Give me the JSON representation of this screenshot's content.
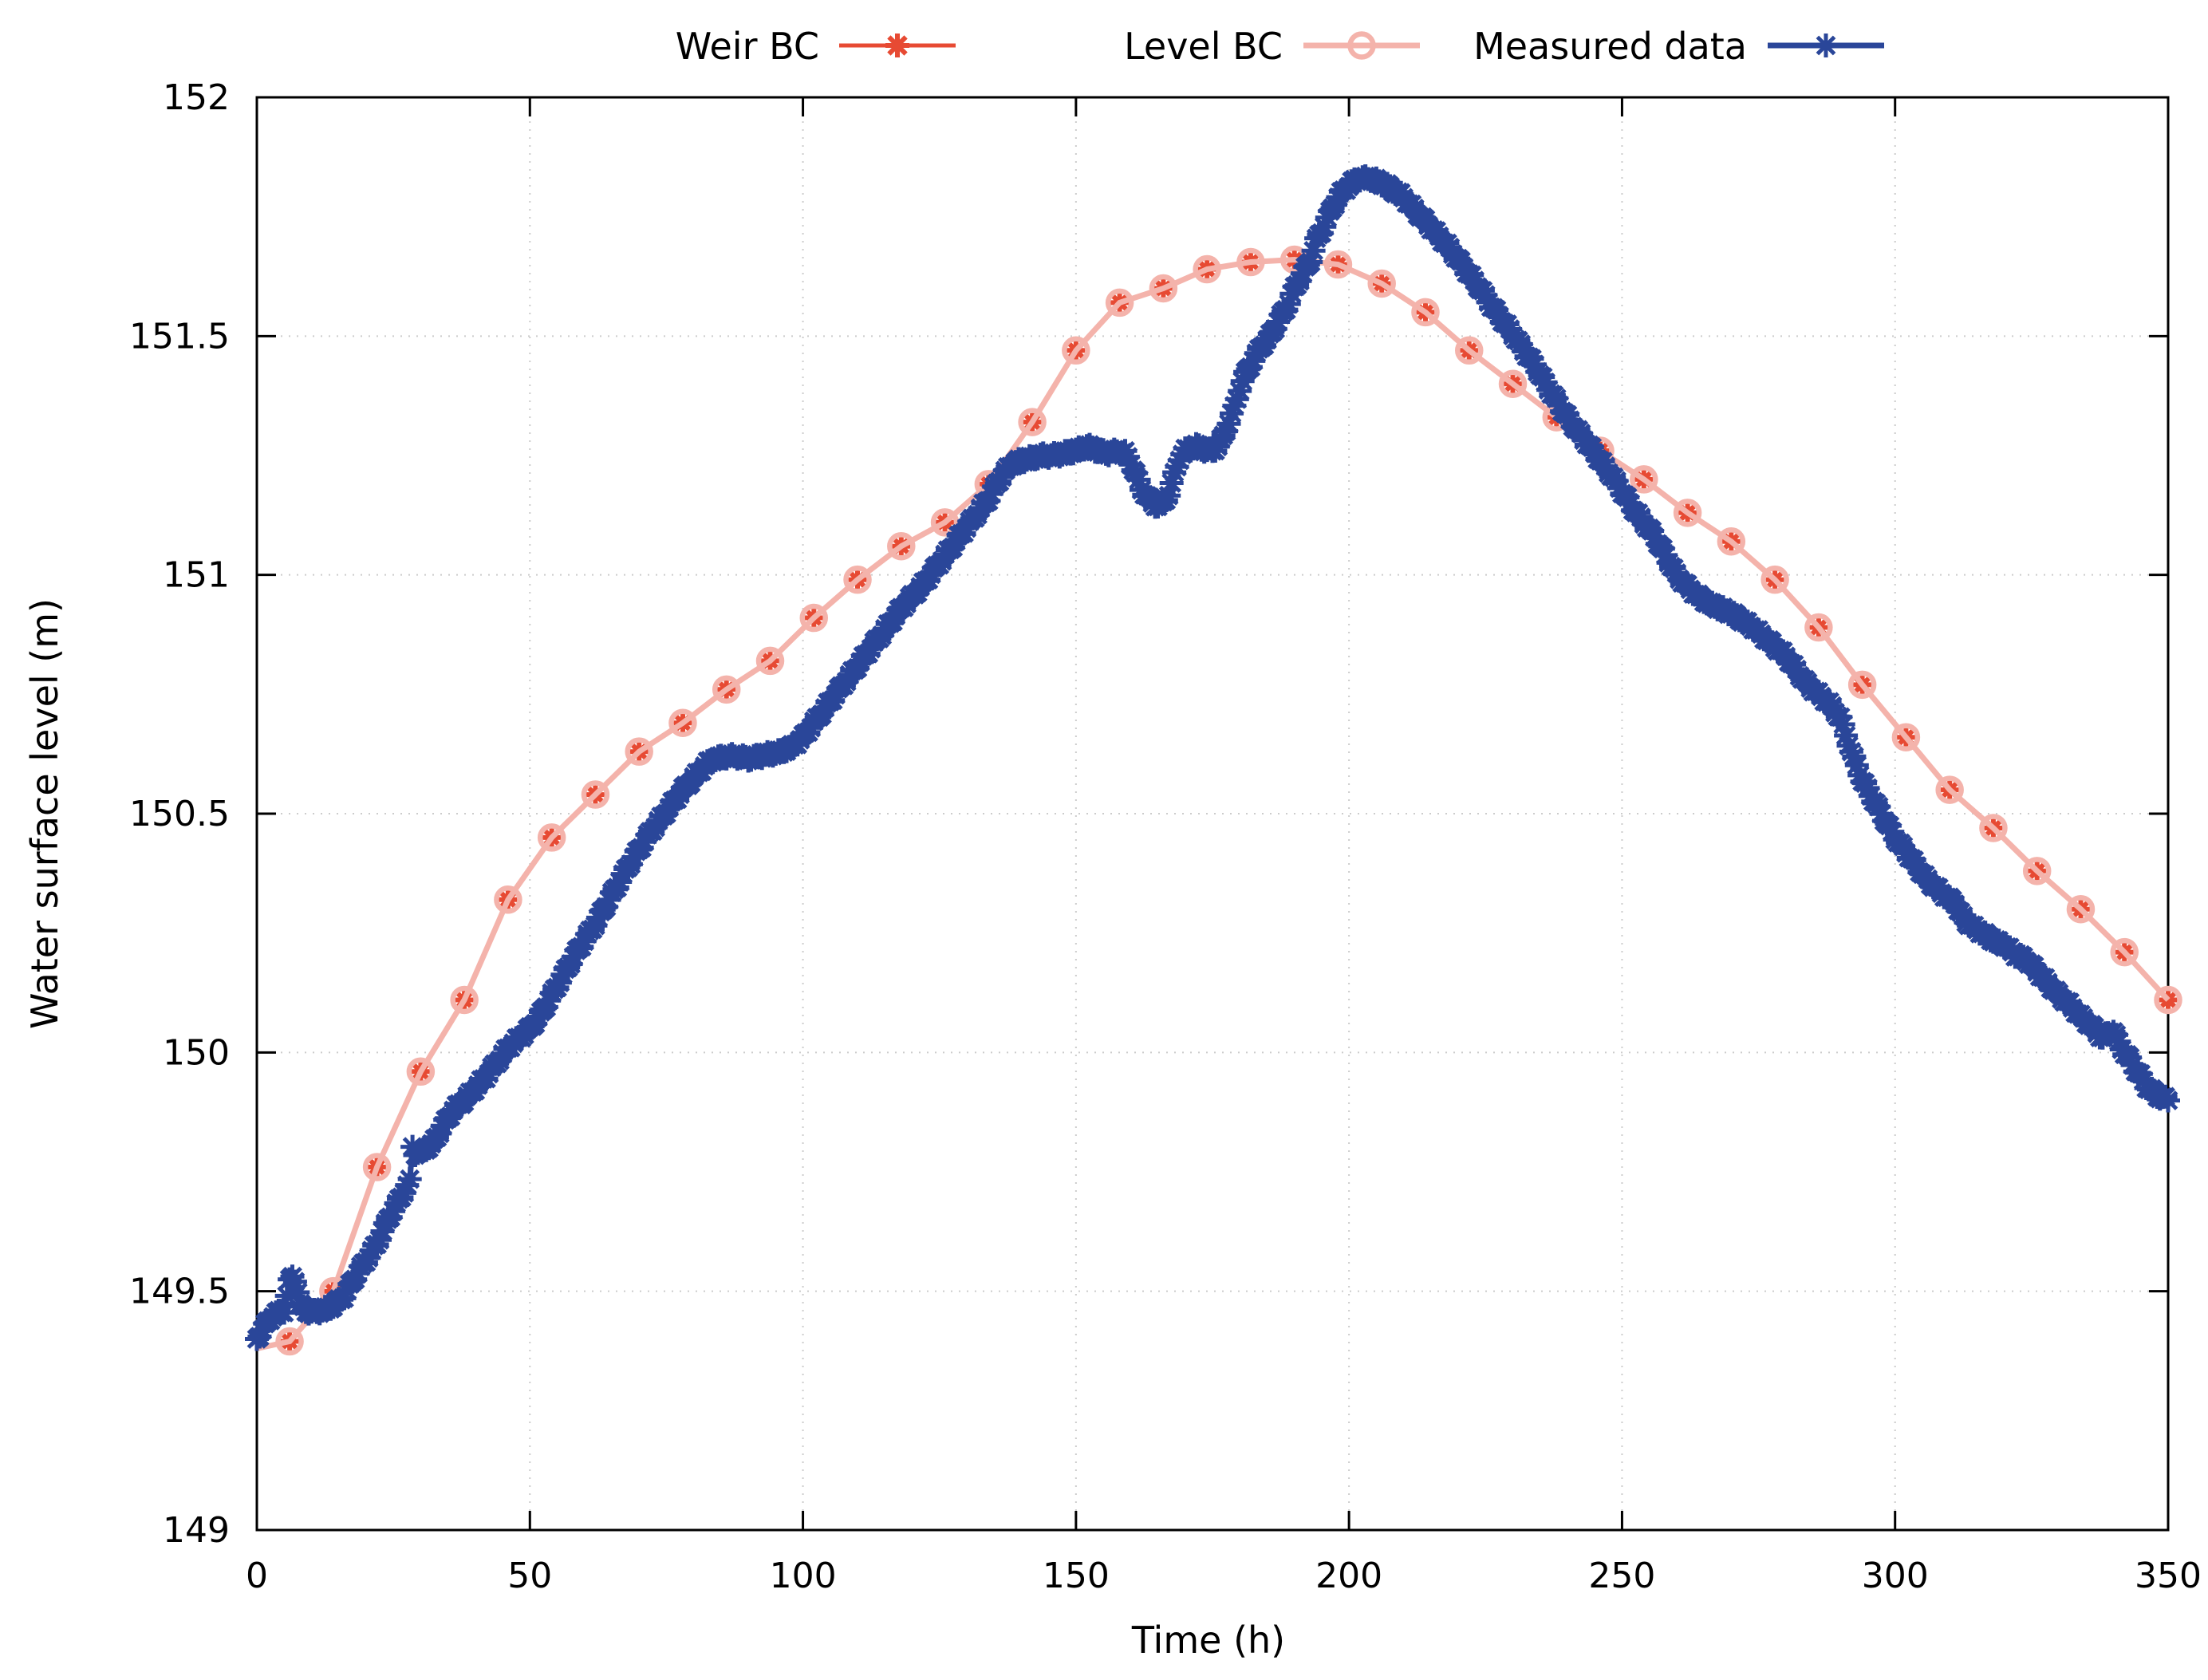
{
  "chart_data": {
    "type": "line",
    "title": "",
    "xlabel": "Time (h)",
    "ylabel": "Water surface level (m)",
    "xlim": [
      0,
      350
    ],
    "ylim": [
      149,
      152
    ],
    "xticks": [
      0,
      50,
      100,
      150,
      200,
      250,
      300,
      350
    ],
    "xtick_labels": [
      "0",
      "50",
      "100",
      "150",
      "200",
      "250",
      "300",
      "350"
    ],
    "yticks": [
      149,
      149.5,
      150,
      150.5,
      151,
      151.5,
      152
    ],
    "ytick_labels": [
      "149",
      "149.5",
      "150",
      "150.5",
      "151",
      "151.5",
      "152"
    ],
    "grid": true,
    "grid_color": "#cccccc",
    "axis_color": "#000000",
    "background": "#ffffff",
    "legend_position": "top-outside-horizontal",
    "series": [
      {
        "name": "Weir BC",
        "color": "#e74a33",
        "marker": "asterisk",
        "marker_from_index": 1,
        "x": [
          0,
          6,
          14,
          22,
          30,
          38,
          46,
          54,
          62,
          70,
          78,
          86,
          94,
          102,
          110,
          118,
          126,
          134,
          142,
          150,
          158,
          166,
          174,
          182,
          190,
          198,
          206,
          214,
          222,
          230,
          238,
          246,
          254,
          262,
          270,
          278,
          286,
          294,
          302,
          310,
          318,
          326,
          334,
          342,
          350
        ],
        "y": [
          149.38,
          149.395,
          149.5,
          149.76,
          149.96,
          150.11,
          150.32,
          150.45,
          150.54,
          150.63,
          150.69,
          150.76,
          150.82,
          150.91,
          150.99,
          151.06,
          151.11,
          151.19,
          151.32,
          151.47,
          151.57,
          151.6,
          151.64,
          151.655,
          151.66,
          151.65,
          151.61,
          151.55,
          151.47,
          151.4,
          151.33,
          151.26,
          151.2,
          151.13,
          151.07,
          150.99,
          150.89,
          150.77,
          150.66,
          150.55,
          150.47,
          150.38,
          150.3,
          150.21,
          150.11
        ]
      },
      {
        "name": "Level BC",
        "color": "#f4b3ab",
        "marker": "open-circle",
        "marker_from_index": 1,
        "x": [
          0,
          6,
          14,
          22,
          30,
          38,
          46,
          54,
          62,
          70,
          78,
          86,
          94,
          102,
          110,
          118,
          126,
          134,
          142,
          150,
          158,
          166,
          174,
          182,
          190,
          198,
          206,
          214,
          222,
          230,
          238,
          246,
          254,
          262,
          270,
          278,
          286,
          294,
          302,
          310,
          318,
          326,
          334,
          342,
          350
        ],
        "y": [
          149.38,
          149.395,
          149.5,
          149.76,
          149.96,
          150.11,
          150.32,
          150.45,
          150.54,
          150.63,
          150.69,
          150.76,
          150.82,
          150.91,
          150.99,
          151.06,
          151.11,
          151.19,
          151.32,
          151.47,
          151.57,
          151.6,
          151.64,
          151.655,
          151.66,
          151.65,
          151.61,
          151.55,
          151.47,
          151.4,
          151.33,
          151.26,
          151.2,
          151.13,
          151.07,
          150.99,
          150.89,
          150.77,
          150.66,
          150.55,
          150.47,
          150.38,
          150.3,
          150.21,
          150.11
        ]
      },
      {
        "name": "Measured data",
        "color": "#2a4699",
        "marker": "asterisk-dense",
        "points": [
          [
            0,
            149.4
          ],
          [
            1,
            149.42
          ],
          [
            2,
            149.435
          ],
          [
            3,
            149.45
          ],
          [
            4,
            149.455
          ],
          [
            5,
            149.46
          ],
          [
            5.5,
            149.49
          ],
          [
            6,
            149.52
          ],
          [
            6.5,
            149.53
          ],
          [
            7,
            149.525
          ],
          [
            7.5,
            149.5
          ],
          [
            8,
            149.47
          ],
          [
            9,
            149.46
          ],
          [
            10,
            149.455
          ],
          [
            12,
            149.46
          ],
          [
            14,
            149.47
          ],
          [
            16,
            149.49
          ],
          [
            18,
            149.53
          ],
          [
            20,
            149.565
          ],
          [
            22,
            149.6
          ],
          [
            24,
            149.65
          ],
          [
            26,
            149.69
          ],
          [
            28,
            149.73
          ],
          [
            28.3,
            149.79
          ],
          [
            28.6,
            149.81
          ],
          [
            29,
            149.79
          ],
          [
            30,
            149.79
          ],
          [
            31,
            149.8
          ],
          [
            32,
            149.805
          ],
          [
            34,
            149.845
          ],
          [
            36,
            149.88
          ],
          [
            38,
            149.9
          ],
          [
            40,
            149.925
          ],
          [
            42,
            149.95
          ],
          [
            44,
            149.98
          ],
          [
            46,
            150.01
          ],
          [
            48,
            150.03
          ],
          [
            50,
            150.05
          ],
          [
            52,
            150.08
          ],
          [
            54,
            150.12
          ],
          [
            56,
            150.16
          ],
          [
            58,
            150.2
          ],
          [
            60,
            150.235
          ],
          [
            62,
            150.27
          ],
          [
            64,
            150.31
          ],
          [
            66,
            150.35
          ],
          [
            68,
            150.39
          ],
          [
            70,
            150.425
          ],
          [
            72,
            150.46
          ],
          [
            74,
            150.49
          ],
          [
            76,
            150.52
          ],
          [
            78,
            150.55
          ],
          [
            80,
            150.575
          ],
          [
            82,
            150.6
          ],
          [
            83,
            150.61
          ],
          [
            84,
            150.615
          ],
          [
            86,
            150.62
          ],
          [
            88,
            150.62
          ],
          [
            90,
            150.615
          ],
          [
            92,
            150.62
          ],
          [
            94,
            150.625
          ],
          [
            96,
            150.63
          ],
          [
            98,
            150.64
          ],
          [
            100,
            150.66
          ],
          [
            102,
            150.69
          ],
          [
            104,
            150.72
          ],
          [
            106,
            150.75
          ],
          [
            108,
            150.78
          ],
          [
            110,
            150.81
          ],
          [
            112,
            150.84
          ],
          [
            114,
            150.87
          ],
          [
            116,
            150.9
          ],
          [
            118,
            150.93
          ],
          [
            120,
            150.955
          ],
          [
            122,
            150.98
          ],
          [
            124,
            151.01
          ],
          [
            126,
            151.04
          ],
          [
            128,
            151.07
          ],
          [
            130,
            151.1
          ],
          [
            132,
            151.13
          ],
          [
            134,
            151.16
          ],
          [
            136,
            151.2
          ],
          [
            138,
            151.23
          ],
          [
            140,
            151.24
          ],
          [
            142,
            151.245
          ],
          [
            144,
            151.25
          ],
          [
            146,
            151.25
          ],
          [
            148,
            151.255
          ],
          [
            150,
            151.26
          ],
          [
            152,
            151.27
          ],
          [
            154,
            151.26
          ],
          [
            156,
            151.255
          ],
          [
            158,
            151.26
          ],
          [
            159,
            151.255
          ],
          [
            160,
            151.235
          ],
          [
            161,
            151.21
          ],
          [
            162,
            151.18
          ],
          [
            163,
            151.165
          ],
          [
            164,
            151.15
          ],
          [
            165,
            151.145
          ],
          [
            166,
            151.15
          ],
          [
            167,
            151.17
          ],
          [
            168,
            151.21
          ],
          [
            169,
            151.245
          ],
          [
            170,
            151.26
          ],
          [
            171,
            151.265
          ],
          [
            172,
            151.27
          ],
          [
            173,
            151.265
          ],
          [
            174,
            151.26
          ],
          [
            175,
            151.26
          ],
          [
            176,
            151.27
          ],
          [
            177,
            151.29
          ],
          [
            178,
            151.32
          ],
          [
            179,
            151.35
          ],
          [
            180,
            151.39
          ],
          [
            181,
            151.42
          ],
          [
            182,
            151.44
          ],
          [
            183,
            151.46
          ],
          [
            184,
            151.48
          ],
          [
            185,
            151.49
          ],
          [
            186,
            151.51
          ],
          [
            187,
            151.53
          ],
          [
            188,
            151.55
          ],
          [
            189,
            151.57
          ],
          [
            190,
            151.6
          ],
          [
            191,
            151.62
          ],
          [
            192,
            151.64
          ],
          [
            193,
            151.66
          ],
          [
            194,
            151.7
          ],
          [
            195,
            151.72
          ],
          [
            196,
            151.745
          ],
          [
            197,
            151.77
          ],
          [
            198,
            151.79
          ],
          [
            199,
            151.805
          ],
          [
            200,
            151.815
          ],
          [
            201,
            151.825
          ],
          [
            202,
            151.83
          ],
          [
            203,
            151.83
          ],
          [
            204,
            151.83
          ],
          [
            205,
            151.825
          ],
          [
            206,
            151.82
          ],
          [
            207,
            151.815
          ],
          [
            208,
            151.805
          ],
          [
            209,
            151.8
          ],
          [
            210,
            151.79
          ],
          [
            212,
            151.765
          ],
          [
            214,
            151.74
          ],
          [
            216,
            151.715
          ],
          [
            218,
            151.69
          ],
          [
            220,
            151.66
          ],
          [
            222,
            151.63
          ],
          [
            224,
            151.6
          ],
          [
            226,
            151.565
          ],
          [
            228,
            151.535
          ],
          [
            230,
            151.505
          ],
          [
            232,
            151.47
          ],
          [
            234,
            151.44
          ],
          [
            236,
            151.4
          ],
          [
            238,
            151.365
          ],
          [
            240,
            151.33
          ],
          [
            242,
            151.3
          ],
          [
            244,
            151.27
          ],
          [
            246,
            151.24
          ],
          [
            248,
            151.21
          ],
          [
            250,
            151.175
          ],
          [
            252,
            151.14
          ],
          [
            254,
            151.11
          ],
          [
            256,
            151.08
          ],
          [
            258,
            151.04
          ],
          [
            260,
            151.0
          ],
          [
            262,
            150.975
          ],
          [
            264,
            150.955
          ],
          [
            266,
            150.94
          ],
          [
            268,
            150.93
          ],
          [
            270,
            150.92
          ],
          [
            272,
            150.905
          ],
          [
            274,
            150.89
          ],
          [
            276,
            150.87
          ],
          [
            278,
            150.85
          ],
          [
            280,
            150.83
          ],
          [
            282,
            150.8
          ],
          [
            284,
            150.77
          ],
          [
            286,
            150.75
          ],
          [
            288,
            150.73
          ],
          [
            290,
            150.7
          ],
          [
            292,
            150.63
          ],
          [
            294,
            150.57
          ],
          [
            296,
            150.53
          ],
          [
            298,
            150.49
          ],
          [
            300,
            150.45
          ],
          [
            302,
            150.42
          ],
          [
            304,
            150.39
          ],
          [
            306,
            150.36
          ],
          [
            308,
            150.34
          ],
          [
            310,
            150.32
          ],
          [
            311,
            150.315
          ],
          [
            311.5,
            150.3
          ],
          [
            312,
            150.29
          ],
          [
            313,
            150.275
          ],
          [
            314,
            150.265
          ],
          [
            316,
            150.25
          ],
          [
            318,
            150.235
          ],
          [
            320,
            150.225
          ],
          [
            322,
            150.205
          ],
          [
            324,
            150.195
          ],
          [
            326,
            150.17
          ],
          [
            328,
            150.145
          ],
          [
            330,
            150.12
          ],
          [
            332,
            150.1
          ],
          [
            334,
            150.075
          ],
          [
            336,
            150.055
          ],
          [
            338,
            150.03
          ],
          [
            339,
            150.04
          ],
          [
            340,
            150.045
          ],
          [
            341,
            150.02
          ],
          [
            342,
            150.0
          ],
          [
            343,
            149.985
          ],
          [
            344,
            149.965
          ],
          [
            345,
            149.95
          ],
          [
            346,
            149.93
          ],
          [
            347,
            149.92
          ],
          [
            348,
            149.91
          ],
          [
            349,
            149.905
          ],
          [
            350,
            149.9
          ]
        ]
      }
    ]
  }
}
